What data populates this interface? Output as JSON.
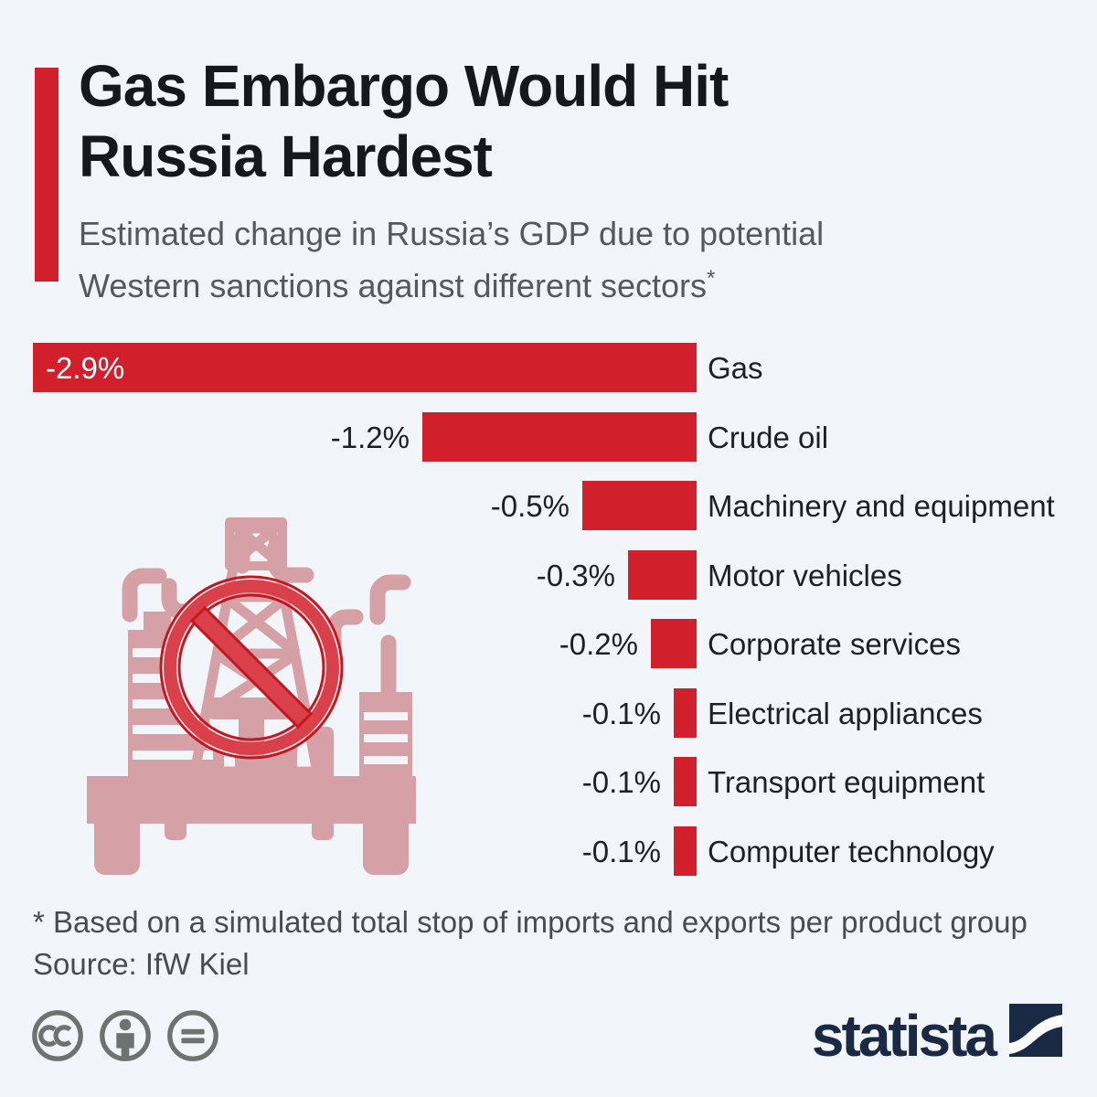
{
  "page": {
    "background": "#f2f5f9"
  },
  "header": {
    "accent_color": "#d11f2b",
    "title_lines": [
      "Gas Embargo Would Hit",
      "Russia Hardest"
    ],
    "subtitle_lines": [
      "Estimated change in Russia’s GDP due to potential",
      "Western sanctions against different sectors"
    ],
    "subtitle_marker": "*"
  },
  "chart_data": {
    "type": "bar",
    "orientation": "horizontal",
    "alignment": "bars-right-aligned-at-zero",
    "title": "Gas Embargo Would Hit Russia Hardest",
    "unit": "%",
    "xlim": [
      -2.9,
      0
    ],
    "bar_color": "#d11f2b",
    "grid": false,
    "legend": false,
    "categories": [
      "Gas",
      "Crude oil",
      "Machinery and equipment",
      "Motor vehicles",
      "Corporate services",
      "Electrical appliances",
      "Transport equipment",
      "Computer technology"
    ],
    "values": [
      -2.9,
      -1.2,
      -0.5,
      -0.3,
      -0.2,
      -0.1,
      -0.1,
      -0.1
    ],
    "rows": [
      {
        "category": "Gas",
        "value": -2.9,
        "label": "-2.9%",
        "label_inside": true
      },
      {
        "category": "Crude oil",
        "value": -1.2,
        "label": "-1.2%",
        "label_inside": false
      },
      {
        "category": "Machinery and equipment",
        "value": -0.5,
        "label": "-0.5%",
        "label_inside": false
      },
      {
        "category": "Motor vehicles",
        "value": -0.3,
        "label": "-0.3%",
        "label_inside": false
      },
      {
        "category": "Corporate services",
        "value": -0.2,
        "label": "-0.2%",
        "label_inside": false
      },
      {
        "category": "Electrical appliances",
        "value": -0.1,
        "label": "-0.1%",
        "label_inside": false
      },
      {
        "category": "Transport equipment",
        "value": -0.1,
        "label": "-0.1%",
        "label_inside": false
      },
      {
        "category": "Computer technology",
        "value": -0.1,
        "label": "-0.1%",
        "label_inside": false
      }
    ]
  },
  "watermark": {
    "name": "banned-gas-plant-icon",
    "pink": "#d5a1a6",
    "ban_band": "#da4049",
    "ban_edge": "#c6161f"
  },
  "footer": {
    "footnote": "* Based on a simulated total stop of imports and exports per product group",
    "source": "Source: IfW Kiel",
    "license_color": "#6d736f",
    "brand_text": "statista",
    "brand_color": "#1b2a44"
  }
}
